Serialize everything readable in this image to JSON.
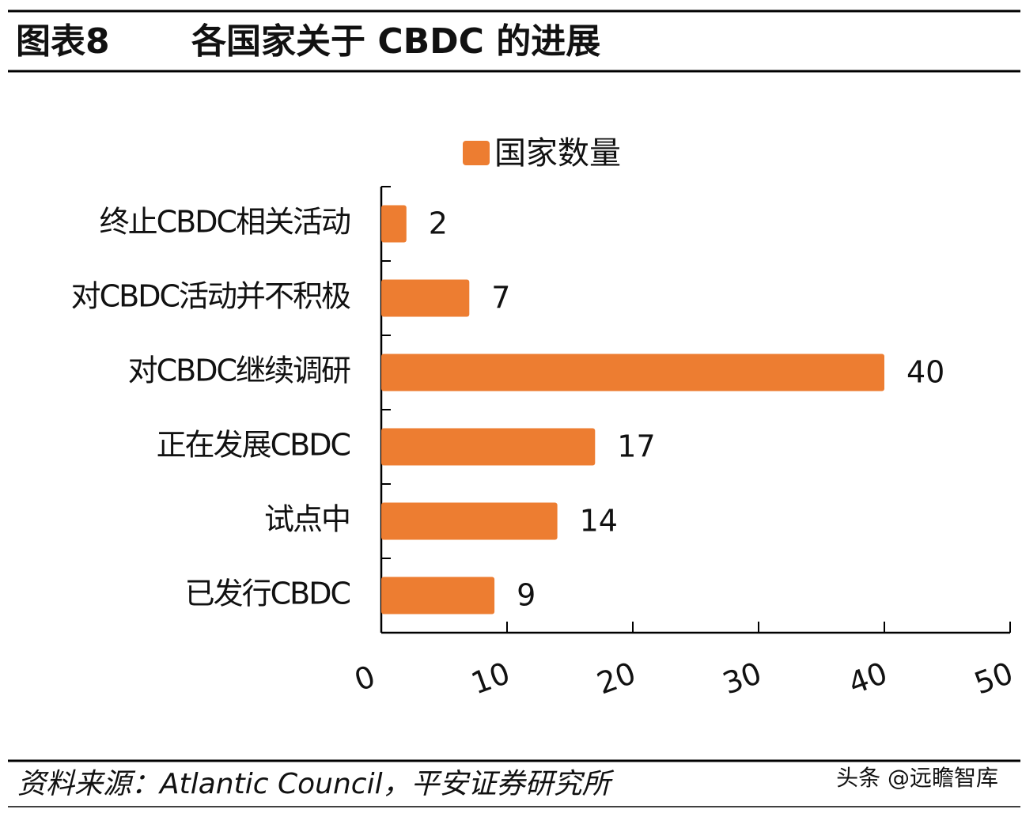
{
  "chart_data": {
    "type": "bar",
    "label": "图表8",
    "title": "各国家关于 CBDC 的进展",
    "categories": [
      "终止CBDC相关活动",
      "对CBDC活动并不积极",
      "对CBDC继续调研",
      "正在发展CBDC",
      "试点中",
      "已发行CBDC"
    ],
    "series": [
      {
        "name": "国家数量",
        "color": "#ed7d31",
        "values": [
          2,
          7,
          40,
          17,
          14,
          9
        ]
      }
    ],
    "xlim": [
      0,
      50
    ],
    "xticks": [
      0,
      10,
      20,
      30,
      40,
      50
    ],
    "source": "资料来源：Atlantic Council，平安证券研究所",
    "watermark": "头条 @远瞻智库"
  }
}
